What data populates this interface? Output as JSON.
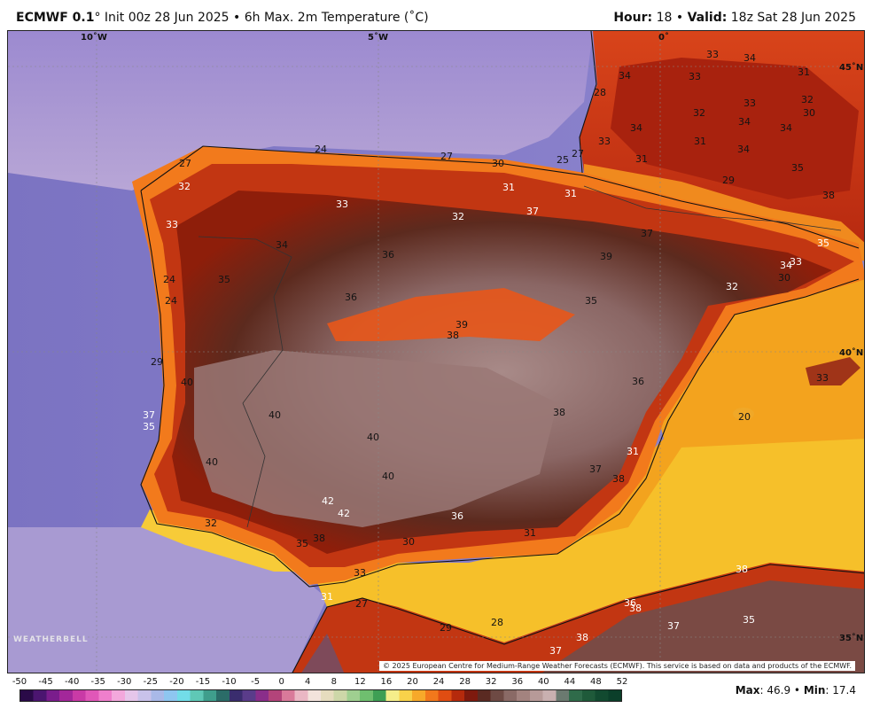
{
  "header": {
    "model": "ECMWF 0.1",
    "degree": "°",
    "run": " Init 00z 28 Jun 2025 • 6h Max. 2m Temperature (˚C)",
    "hour_label": "Hour:",
    "hour_value": " 18 • ",
    "valid_label": "Valid:",
    "valid_value": " 18z Sat 28 Jun 2025"
  },
  "map": {
    "lon_labels": [
      "10˚W",
      "5˚W",
      "0˚"
    ],
    "lat_labels": [
      "45˚N",
      "40˚N",
      "35˚N"
    ],
    "temperature_labels": [
      {
        "v": "34"
      },
      {
        "v": "33"
      },
      {
        "v": "34"
      },
      {
        "v": "33"
      },
      {
        "v": "31"
      },
      {
        "v": "28"
      },
      {
        "v": "32"
      },
      {
        "v": "33"
      },
      {
        "v": "32"
      },
      {
        "v": "34"
      },
      {
        "v": "34"
      },
      {
        "v": "30"
      },
      {
        "v": "34"
      },
      {
        "v": "33"
      },
      {
        "v": "31"
      },
      {
        "v": "31"
      },
      {
        "v": "34"
      },
      {
        "v": "35"
      },
      {
        "v": "27"
      },
      {
        "v": "25"
      },
      {
        "v": "29"
      },
      {
        "v": "24"
      },
      {
        "v": "27"
      },
      {
        "v": "30"
      },
      {
        "v": "27"
      },
      {
        "v": "32"
      },
      {
        "v": "33"
      },
      {
        "v": "31"
      },
      {
        "v": "31"
      },
      {
        "v": "38"
      },
      {
        "v": "33"
      },
      {
        "v": "32"
      },
      {
        "v": "37"
      },
      {
        "v": "37"
      },
      {
        "v": "35"
      },
      {
        "v": "34"
      },
      {
        "v": "36"
      },
      {
        "v": "39"
      },
      {
        "v": "34"
      },
      {
        "v": "33"
      },
      {
        "v": "24"
      },
      {
        "v": "35"
      },
      {
        "v": "30"
      },
      {
        "v": "24"
      },
      {
        "v": "36"
      },
      {
        "v": "32"
      },
      {
        "v": "35"
      },
      {
        "v": "39"
      },
      {
        "v": "38"
      },
      {
        "v": "29"
      },
      {
        "v": "40"
      },
      {
        "v": "36"
      },
      {
        "v": "33"
      },
      {
        "v": "40"
      },
      {
        "v": "37"
      },
      {
        "v": "38"
      },
      {
        "v": "35"
      },
      {
        "v": "20"
      },
      {
        "v": "40"
      },
      {
        "v": "40"
      },
      {
        "v": "37"
      },
      {
        "v": "31"
      },
      {
        "v": "40"
      },
      {
        "v": "38"
      },
      {
        "v": "42"
      },
      {
        "v": "42"
      },
      {
        "v": "36"
      },
      {
        "v": "32"
      },
      {
        "v": "35"
      },
      {
        "v": "38"
      },
      {
        "v": "30"
      },
      {
        "v": "31"
      },
      {
        "v": "33"
      },
      {
        "v": "38"
      },
      {
        "v": "31"
      },
      {
        "v": "27"
      },
      {
        "v": "36"
      },
      {
        "v": "38"
      },
      {
        "v": "35"
      },
      {
        "v": "37"
      },
      {
        "v": "29"
      },
      {
        "v": "28"
      },
      {
        "v": "37"
      },
      {
        "v": "38"
      }
    ],
    "copyright": "© 2025 European Centre for Medium-Range Weather Forecasts (ECMWF). This service is based on data and products of the ECMWF.",
    "logo": "WEATHERBELL"
  },
  "colorbar": {
    "ticks": [
      "-50",
      "-45",
      "-40",
      "-35",
      "-30",
      "-25",
      "-20",
      "-15",
      "-10",
      "-5",
      "0",
      "4",
      "8",
      "12",
      "16",
      "20",
      "24",
      "28",
      "32",
      "36",
      "40",
      "44",
      "48",
      "52"
    ],
    "colors": [
      "#2a0a48",
      "#4b1570",
      "#7a1d8c",
      "#a3279a",
      "#c93aa6",
      "#e057b8",
      "#ef7fcc",
      "#f3a8dc",
      "#e6c6ea",
      "#c9c2ea",
      "#a9b9e8",
      "#8ec6f0",
      "#72dde8",
      "#5fc8b6",
      "#3f9e8c",
      "#2b6c68",
      "#3a2d6e",
      "#5a3c8a",
      "#8a2e8a",
      "#b3447a",
      "#d97a9a",
      "#eab7c4",
      "#f3e3dc",
      "#e6dcbe",
      "#cdd7a8",
      "#9fcf90",
      "#6fbf6f",
      "#3e9f54",
      "#f5ee8a",
      "#f8d24a",
      "#f7a92a",
      "#f2781c",
      "#e04d12",
      "#b52a0c",
      "#7e1a0e",
      "#5a2a22",
      "#6e4a44",
      "#8a6a66",
      "#a3837f",
      "#b79a98",
      "#c9b0b0",
      "#6b7a70",
      "#2f6b4a",
      "#1f5a3a",
      "#124a30",
      "#0b3f2a"
    ],
    "max_label": "Max",
    "max_value": "46.9",
    "min_label": "Min",
    "min_value": "17.4"
  }
}
